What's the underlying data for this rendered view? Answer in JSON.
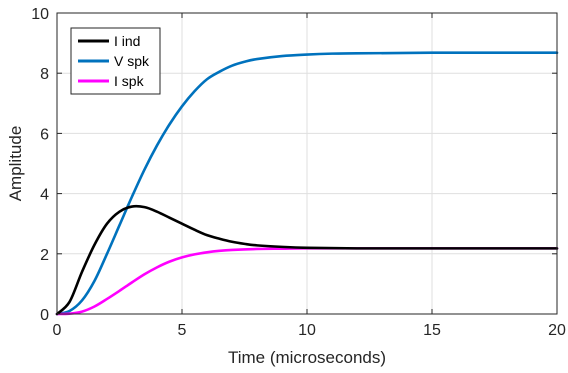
{
  "chart_data": {
    "type": "line",
    "title": "",
    "xlabel": "Time (microseconds)",
    "ylabel": "Amplitude",
    "xlim": [
      0,
      20
    ],
    "ylim": [
      0,
      10
    ],
    "x_ticks": [
      0,
      5,
      10,
      15,
      20
    ],
    "y_ticks": [
      0,
      2,
      4,
      6,
      8,
      10
    ],
    "grid": true,
    "legend_position": "top-left",
    "series": [
      {
        "name": "I ind",
        "color": "#000000",
        "x": [
          0,
          0.5,
          1,
          1.5,
          2,
          2.5,
          3,
          3.5,
          4,
          4.5,
          5,
          5.5,
          6,
          6.5,
          7,
          7.5,
          8,
          9,
          10,
          12,
          15,
          20
        ],
        "y": [
          0,
          0.4,
          1.4,
          2.3,
          3.0,
          3.4,
          3.57,
          3.55,
          3.4,
          3.2,
          3.0,
          2.8,
          2.62,
          2.5,
          2.4,
          2.33,
          2.28,
          2.23,
          2.2,
          2.18,
          2.18,
          2.18
        ]
      },
      {
        "name": "V spk",
        "color": "#0072bd",
        "x": [
          0,
          0.5,
          1,
          1.5,
          2,
          2.5,
          3,
          3.5,
          4,
          4.5,
          5,
          5.5,
          6,
          6.5,
          7,
          7.5,
          8,
          9,
          10,
          11,
          12,
          15,
          20
        ],
        "y": [
          0,
          0.1,
          0.45,
          1.1,
          2.0,
          2.95,
          3.9,
          4.8,
          5.6,
          6.3,
          6.9,
          7.4,
          7.8,
          8.05,
          8.25,
          8.38,
          8.47,
          8.57,
          8.62,
          8.65,
          8.66,
          8.68,
          8.68
        ]
      },
      {
        "name": "I spk",
        "color": "#ff00ff",
        "x": [
          0,
          0.5,
          1,
          1.5,
          2,
          2.5,
          3,
          3.5,
          4,
          4.5,
          5,
          5.5,
          6,
          6.5,
          7,
          8,
          9,
          10,
          12,
          15,
          20
        ],
        "y": [
          0,
          0.01,
          0.08,
          0.25,
          0.5,
          0.77,
          1.05,
          1.32,
          1.55,
          1.74,
          1.88,
          1.98,
          2.05,
          2.1,
          2.13,
          2.16,
          2.17,
          2.18,
          2.18,
          2.18,
          2.18
        ]
      }
    ]
  }
}
